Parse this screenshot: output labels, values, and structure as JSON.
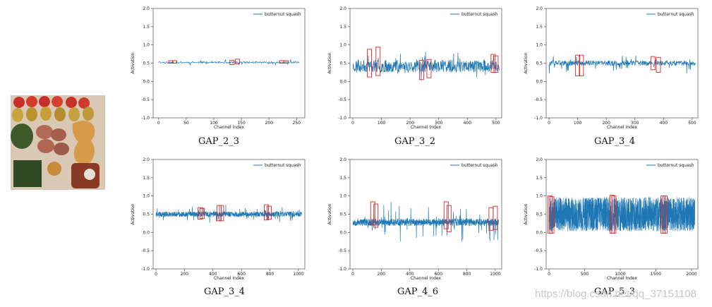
{
  "image_alt": "vegetables and fruit",
  "watermark": "https://blog.csdn.net/qq_37151108",
  "chart_data": [
    {
      "type": "line",
      "title": "GAP_2_3",
      "series_name": "butternut squash",
      "xlabel": "Channel Index",
      "ylabel": "Activation",
      "xlim": [
        -10,
        265
      ],
      "ylim": [
        -1.0,
        2.0
      ],
      "xticks": [
        0,
        50,
        100,
        150,
        200,
        250
      ],
      "yticks": [
        -1.0,
        -0.5,
        0.0,
        0.5,
        1.0,
        1.5,
        2.0
      ],
      "channels": 256,
      "mean": 0.52,
      "amp": 0.025,
      "spike": 0.06,
      "seed": 11,
      "highlights": [
        [
          22,
          0.5,
          0.57
        ],
        [
          29,
          0.5,
          0.57
        ],
        [
          133,
          0.46,
          0.58
        ],
        [
          143,
          0.48,
          0.61
        ],
        [
          223,
          0.5,
          0.57
        ],
        [
          231,
          0.5,
          0.57
        ]
      ],
      "color": "#1f77b4",
      "highlight_color": "#d62728"
    },
    {
      "type": "line",
      "title": "GAP_3_2",
      "series_name": "butternut squash",
      "xlabel": "Channel Index",
      "ylabel": "Activation",
      "xlim": [
        -10,
        520
      ],
      "ylim": [
        -1.0,
        2.0
      ],
      "xticks": [
        0,
        100,
        200,
        300,
        400,
        500
      ],
      "yticks": [
        -1.0,
        -0.5,
        0.0,
        0.5,
        1.0,
        1.5,
        2.0
      ],
      "channels": 512,
      "mean": 0.42,
      "amp": 0.17,
      "spike": 0.3,
      "seed": 23,
      "highlights": [
        [
          58,
          0.12,
          0.88
        ],
        [
          88,
          0.16,
          0.94
        ],
        [
          240,
          0.05,
          0.58
        ],
        [
          266,
          0.1,
          0.6
        ],
        [
          490,
          0.25,
          0.74
        ],
        [
          500,
          0.25,
          0.7
        ]
      ],
      "color": "#1f77b4",
      "highlight_color": "#d62728"
    },
    {
      "type": "line",
      "title": "GAP_3_4",
      "series_name": "butternut squash",
      "xlabel": "Channel Index",
      "ylabel": "Activation",
      "xlim": [
        -10,
        520
      ],
      "ylim": [
        -1.0,
        2.0
      ],
      "xticks": [
        0,
        100,
        200,
        300,
        400,
        500
      ],
      "yticks": [
        -1.0,
        -0.5,
        0.0,
        0.5,
        1.0,
        1.5,
        2.0
      ],
      "channels": 512,
      "mean": 0.5,
      "amp": 0.07,
      "spike": 0.25,
      "seed": 37,
      "highlights": [
        [
          100,
          0.15,
          0.72
        ],
        [
          113,
          0.15,
          0.72
        ],
        [
          363,
          0.32,
          0.68
        ],
        [
          382,
          0.25,
          0.66
        ]
      ],
      "color": "#1f77b4",
      "highlight_color": "#d62728"
    },
    {
      "type": "line",
      "title": "GAP_3_4",
      "series_name": "butternut squash",
      "xlabel": "Channel Index",
      "ylabel": "Activation",
      "xlim": [
        -20,
        1045
      ],
      "ylim": [
        -1.0,
        2.0
      ],
      "xticks": [
        0,
        200,
        400,
        600,
        800,
        1000
      ],
      "yticks": [
        -1.0,
        -0.5,
        0.0,
        0.5,
        1.0,
        1.5,
        2.0
      ],
      "channels": 1024,
      "mean": 0.5,
      "amp": 0.07,
      "spike": 0.2,
      "seed": 41,
      "highlights": [
        [
          310,
          0.36,
          0.68
        ],
        [
          325,
          0.38,
          0.66
        ],
        [
          443,
          0.32,
          0.74
        ],
        [
          460,
          0.32,
          0.74
        ],
        [
          775,
          0.34,
          0.76
        ],
        [
          795,
          0.36,
          0.72
        ]
      ],
      "color": "#1f77b4",
      "highlight_color": "#d62728"
    },
    {
      "type": "line",
      "title": "GAP_4_6",
      "series_name": "butternut squash",
      "xlabel": "Channel Index",
      "ylabel": "Activation",
      "xlim": [
        -20,
        1045
      ],
      "ylim": [
        -1.0,
        2.0
      ],
      "xticks": [
        0,
        200,
        400,
        600,
        800,
        1000
      ],
      "yticks": [
        -1.0,
        -0.5,
        0.0,
        0.5,
        1.0,
        1.5,
        2.0
      ],
      "channels": 1024,
      "mean": 0.28,
      "amp": 0.1,
      "spike": 0.5,
      "seed": 53,
      "highlights": [
        [
          140,
          0.2,
          0.84
        ],
        [
          162,
          0.14,
          0.78
        ],
        [
          655,
          0.1,
          0.84
        ],
        [
          675,
          0.02,
          0.74
        ],
        [
          970,
          0.06,
          0.68
        ],
        [
          1000,
          0.08,
          0.72
        ]
      ],
      "color": "#1f77b4",
      "highlight_color": "#d62728"
    },
    {
      "type": "line",
      "title": "GAP_5_3",
      "series_name": "butternut squash",
      "xlabel": "Channel Index",
      "ylabel": "Activation",
      "xlim": [
        -40,
        2090
      ],
      "ylim": [
        -1.0,
        2.0
      ],
      "xticks": [
        0,
        500,
        1000,
        1500,
        2000
      ],
      "yticks": [
        -1.0,
        -0.5,
        0.0,
        0.5,
        1.0,
        1.5,
        2.0
      ],
      "channels": 2048,
      "mean": 0.5,
      "amp": 0.47,
      "spike": 0.0,
      "seed": 67,
      "highlights": [
        [
          15,
          -0.02,
          1.0
        ],
        [
          40,
          -0.02,
          0.98
        ],
        [
          885,
          -0.02,
          1.02
        ],
        [
          910,
          -0.02,
          1.0
        ],
        [
          1600,
          -0.02,
          1.0
        ],
        [
          1630,
          -0.02,
          1.0
        ]
      ],
      "color": "#1f77b4",
      "highlight_color": "#d62728"
    }
  ]
}
